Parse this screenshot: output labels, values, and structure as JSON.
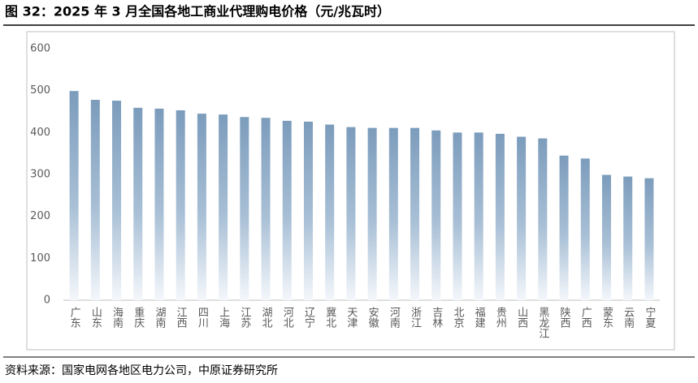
{
  "chart_data": {
    "type": "bar",
    "title": "图 32：2025 年 3 月全国各地工商业代理购电价格（元/兆瓦时）",
    "source": "资料来源：国家电网各地区电力公司，中原证券研究所",
    "categories": [
      "广东",
      "山东",
      "海南",
      "重庆",
      "湖南",
      "江西",
      "四川",
      "上海",
      "江苏",
      "湖北",
      "河北",
      "辽宁",
      "冀北",
      "天津",
      "安徽",
      "河南",
      "浙江",
      "吉林",
      "北京",
      "福建",
      "贵州",
      "山西",
      "黑龙江",
      "陕西",
      "广西",
      "蒙东",
      "云南",
      "宁夏"
    ],
    "values": [
      499,
      478,
      476,
      459,
      457,
      453,
      445,
      443,
      437,
      435,
      428,
      426,
      419,
      413,
      411,
      411,
      411,
      405,
      400,
      400,
      397,
      390,
      386,
      345,
      338,
      299,
      295,
      291
    ],
    "ylim": [
      0,
      600
    ],
    "yticks": [
      0,
      100,
      200,
      300,
      400,
      500,
      600
    ],
    "grid": false
  }
}
